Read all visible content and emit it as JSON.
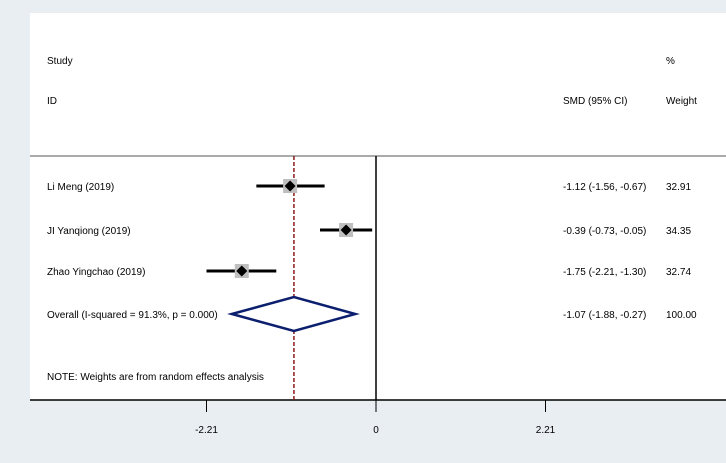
{
  "chart_data": {
    "type": "forest",
    "headers": {
      "study_line1": "Study",
      "study_line2": "ID",
      "effect": "SMD (95% CI)",
      "weight_line1": "%",
      "weight_line2": "Weight"
    },
    "studies": [
      {
        "label": "Li Meng (2019)",
        "smd": -1.12,
        "ci_low": -1.56,
        "ci_high": -0.67,
        "ci_text": "-1.12 (-1.56, -0.67)",
        "weight": "32.91"
      },
      {
        "label": "JI Yanqiong (2019)",
        "smd": -0.39,
        "ci_low": -0.73,
        "ci_high": -0.05,
        "ci_text": "-0.39 (-0.73, -0.05)",
        "weight": "34.35"
      },
      {
        "label": "Zhao Yingchao (2019)",
        "smd": -1.75,
        "ci_low": -2.21,
        "ci_high": -1.3,
        "ci_text": "-1.75 (-2.21, -1.30)",
        "weight": "32.74"
      }
    ],
    "overall": {
      "label": "Overall  (I-squared = 91.3%, p = 0.000)",
      "smd": -1.07,
      "ci_low": -1.88,
      "ci_high": -0.27,
      "ci_text": "-1.07 (-1.88, -0.27)",
      "weight": "100.00"
    },
    "note": "NOTE: Weights are from random effects analysis",
    "x_ticks": [
      {
        "value": -2.21,
        "label": "-2.21"
      },
      {
        "value": 0,
        "label": "0"
      },
      {
        "value": 2.21,
        "label": "2.21"
      }
    ],
    "null_line": 0,
    "colors": {
      "background": "#e9eef2",
      "plot_area": "#ffffff",
      "diamond": "#0b1f6e",
      "overall_line": "#8b1a1a",
      "weight_box": "#bfbfbf",
      "marker": "#000000"
    }
  }
}
